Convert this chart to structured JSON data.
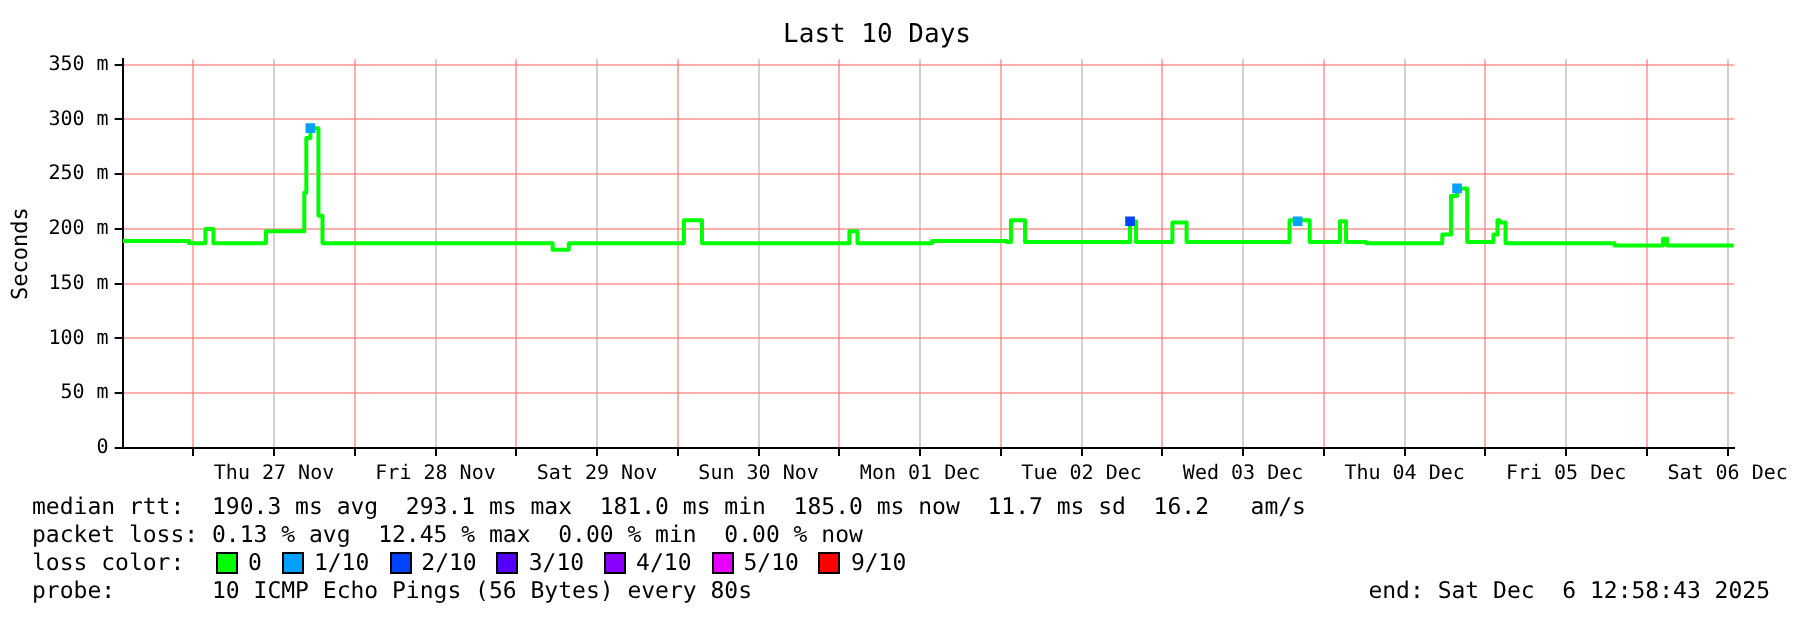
{
  "chart_data": {
    "type": "step",
    "title": "Last 10 Days",
    "ylabel": "Seconds",
    "legend_title": "loss color:",
    "legend": "bottom",
    "annotations": [
      "median rtt:  190.3 ms avg  293.1 ms max  181.0 ms min  185.0 ms now  11.7 ms sd  16.2   am/s",
      "packet loss: 0.13 % avg  12.45 % max  0.00 % min  0.00 % now",
      "probe:       10 ICMP Echo Pings (56 Bytes) every 80s",
      "end: Sat Dec  6 12:58:43 2025"
    ],
    "xlim": [
      "2025-11-26T13:30",
      "2025-12-06T13:00"
    ],
    "xticks": [
      {
        "value": "2025-11-27T00:00",
        "label": null
      },
      {
        "value": "2025-11-27T12:00",
        "label": "Thu 27 Nov"
      },
      {
        "value": "2025-11-28T00:00",
        "label": null
      },
      {
        "value": "2025-11-28T12:00",
        "label": "Fri 28 Nov"
      },
      {
        "value": "2025-11-29T00:00",
        "label": null
      },
      {
        "value": "2025-11-29T12:00",
        "label": "Sat 29 Nov"
      },
      {
        "value": "2025-11-30T00:00",
        "label": null
      },
      {
        "value": "2025-11-30T12:00",
        "label": "Sun 30 Nov"
      },
      {
        "value": "2025-12-01T00:00",
        "label": null
      },
      {
        "value": "2025-12-01T12:00",
        "label": "Mon 01 Dec"
      },
      {
        "value": "2025-12-02T00:00",
        "label": null
      },
      {
        "value": "2025-12-02T12:00",
        "label": "Tue 02 Dec"
      },
      {
        "value": "2025-12-03T00:00",
        "label": null
      },
      {
        "value": "2025-12-03T12:00",
        "label": "Wed 03 Dec"
      },
      {
        "value": "2025-12-04T00:00",
        "label": null
      },
      {
        "value": "2025-12-04T12:00",
        "label": "Thu 04 Dec"
      },
      {
        "value": "2025-12-05T00:00",
        "label": null
      },
      {
        "value": "2025-12-05T12:00",
        "label": "Fri 05 Dec"
      },
      {
        "value": "2025-12-06T00:00",
        "label": null
      },
      {
        "value": "2025-12-06T12:00",
        "label": "Sat 06 Dec"
      }
    ],
    "ylim": [
      0,
      355
    ],
    "yticks": [
      0,
      {
        "value": 50,
        "label": "50 m"
      },
      {
        "value": 100,
        "label": "100 m"
      },
      {
        "value": 150,
        "label": "150 m"
      },
      {
        "value": 200,
        "label": "200 m"
      },
      {
        "value": 250,
        "label": "250 m"
      },
      {
        "value": 300,
        "label": "300 m"
      },
      {
        "value": 350,
        "label": "350 m"
      }
    ],
    "grid": true,
    "series": [
      {
        "name": "0",
        "color": "#00ff00",
        "x": [
          "2025-11-26T13:30",
          "2025-11-26T23:24",
          "2025-11-27T01:48",
          "2025-11-27T03:00",
          "2025-11-27T10:48",
          "2025-11-27T16:30",
          "2025-11-27T16:48",
          "2025-11-27T17:24",
          "2025-11-27T18:36",
          "2025-11-27T19:12",
          "2025-11-29T05:24",
          "2025-11-29T07:48",
          "2025-11-30T00:54",
          "2025-11-30T03:36",
          "2025-12-01T01:30",
          "2025-12-01T02:42",
          "2025-12-01T13:48",
          "2025-12-02T00:54",
          "2025-12-02T01:30",
          "2025-12-02T03:36",
          "2025-12-02T19:12",
          "2025-12-02T20:06",
          "2025-12-03T01:30",
          "2025-12-03T03:36",
          "2025-12-03T18:54",
          "2025-12-03T21:54",
          "2025-12-04T02:24",
          "2025-12-04T03:18",
          "2025-12-04T06:18",
          "2025-12-04T17:36",
          "2025-12-04T18:54",
          "2025-12-04T19:48",
          "2025-12-04T21:18",
          "2025-12-05T01:12",
          "2025-12-05T01:48",
          "2025-12-05T02:06",
          "2025-12-05T03:00",
          "2025-12-05T19:12",
          "2025-12-06T02:24",
          "2025-12-06T03:00",
          "2025-12-06T12:54"
        ],
        "values": [
          189,
          187,
          200,
          187,
          198,
          233,
          283,
          292,
          212,
          187,
          181,
          187,
          208,
          187,
          198,
          187,
          189,
          188,
          208,
          188,
          207,
          188,
          206,
          188,
          208,
          188,
          207,
          188,
          187,
          195,
          230,
          237,
          188,
          195,
          208,
          206,
          187,
          185,
          191,
          185,
          185
        ]
      },
      {
        "name": "1/10",
        "color": "#00a0ff",
        "type": "scatter",
        "x": [
          "2025-11-27T17:24",
          "2025-12-03T20:06",
          "2025-12-04T19:48"
        ],
        "values": [
          292,
          207,
          237
        ]
      },
      {
        "name": "2/10",
        "color": "#0044ff",
        "type": "scatter",
        "x": [
          "2025-12-02T19:12"
        ],
        "values": [
          207
        ]
      },
      {
        "name": "3/10",
        "color": "#5500ff"
      },
      {
        "name": "4/10",
        "color": "#8a00ff"
      },
      {
        "name": "5/10",
        "color": "#e600ff"
      },
      {
        "name": "9/10",
        "color": "#ff0000"
      }
    ]
  }
}
